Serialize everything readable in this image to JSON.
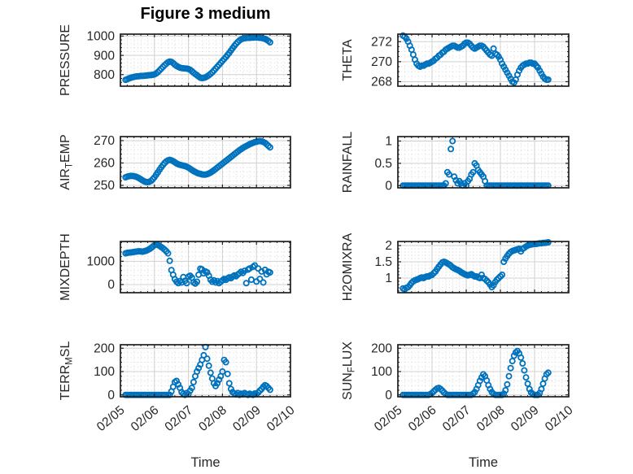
{
  "figure": {
    "title": "Figure 3 medium",
    "xlabel": "Time",
    "x_tick_labels": [
      "02/05",
      "02/06",
      "02/07",
      "02/08",
      "02/09",
      "02/10"
    ],
    "marker_color": "#0072BD",
    "axis_color": "#1f1f1f",
    "grid_color": "#d0d0d0",
    "minor_grid_color": "#d9d9d9",
    "text_color": "#262626"
  },
  "chart_data": [
    {
      "type": "scatter",
      "name": "pressure",
      "ylabel": "PRESSURE",
      "ylabel_parts": {
        "pre": "PRESSURE",
        "sub": "",
        "post": ""
      },
      "row": 0,
      "col": 0,
      "xlim": [
        0,
        5
      ],
      "ylim": [
        740,
        1010
      ],
      "yticks": [
        800,
        900,
        1000
      ],
      "ytick_labels": [
        "800",
        "900",
        "1000"
      ],
      "yminor": 20,
      "x0": 0.15,
      "dx": 0.05,
      "y": [
        773,
        776,
        780,
        783,
        786,
        788,
        790,
        791,
        792,
        793,
        793,
        794,
        795,
        796,
        797,
        798,
        799,
        801,
        806,
        813,
        822,
        831,
        840,
        849,
        857,
        864,
        868,
        866,
        860,
        852,
        845,
        840,
        836,
        834,
        833,
        832,
        831,
        829,
        825,
        818,
        810,
        803,
        797,
        790,
        784,
        782,
        783,
        786,
        791,
        797,
        804,
        812,
        821,
        831,
        841,
        851,
        861,
        871,
        881,
        891,
        902,
        913,
        925,
        937,
        949,
        960,
        969,
        977,
        983,
        987,
        989,
        990,
        991,
        991,
        992,
        992,
        993,
        993,
        992,
        991,
        990,
        988,
        985,
        981,
        975,
        968
      ]
    },
    {
      "type": "scatter",
      "name": "theta",
      "ylabel": "THETA",
      "ylabel_parts": {
        "pre": "THETA",
        "sub": "",
        "post": ""
      },
      "row": 0,
      "col": 1,
      "xlim": [
        0,
        5
      ],
      "ylim": [
        267.55,
        272.75
      ],
      "yticks": [
        268,
        270,
        272
      ],
      "ytick_labels": [
        "268",
        "270",
        "272"
      ],
      "yminor": 0.5,
      "x0": 0.15,
      "dx": 0.05,
      "y": [
        272.6,
        272.5,
        272.3,
        272.0,
        271.6,
        271.2,
        270.7,
        270.2,
        269.8,
        269.6,
        269.5,
        269.6,
        269.6,
        269.7,
        269.8,
        269.8,
        269.9,
        270.0,
        270.1,
        270.3,
        270.4,
        270.6,
        270.7,
        270.9,
        271.0,
        271.2,
        271.3,
        271.4,
        271.5,
        271.6,
        271.6,
        271.5,
        271.4,
        271.4,
        271.5,
        271.6,
        271.8,
        271.9,
        271.9,
        271.8,
        271.6,
        271.4,
        271.3,
        271.4,
        271.5,
        271.6,
        271.6,
        271.5,
        271.3,
        271.1,
        270.9,
        270.7,
        270.6,
        271.3,
        270.8,
        270.7,
        270.5,
        270.2,
        269.8,
        269.5,
        269.2,
        268.9,
        268.6,
        268.3,
        268.0,
        267.9,
        268.2,
        268.7,
        269.1,
        269.4,
        269.6,
        269.7,
        269.8,
        269.8,
        269.9,
        269.9,
        269.8,
        269.8,
        269.6,
        269.4,
        269.1,
        268.8,
        268.5,
        268.3,
        268.2,
        268.2
      ]
    },
    {
      "type": "scatter",
      "name": "airtemp",
      "ylabel": "AIR_TEMP",
      "ylabel_parts": {
        "pre": "AIR",
        "sub": "T",
        "post": "EMP"
      },
      "row": 1,
      "col": 0,
      "xlim": [
        0,
        5
      ],
      "ylim": [
        248.9,
        271.8
      ],
      "yticks": [
        250,
        260,
        270
      ],
      "ytick_labels": [
        "250",
        "260",
        "270"
      ],
      "yminor": 2,
      "x0": 0.15,
      "dx": 0.05,
      "y": [
        253.6,
        253.9,
        254.1,
        254.2,
        254.2,
        254.1,
        253.9,
        253.6,
        253.2,
        252.7,
        252.2,
        251.8,
        251.5,
        251.4,
        251.6,
        252.0,
        252.7,
        253.6,
        254.7,
        255.8,
        257.0,
        258.1,
        259.1,
        260.0,
        260.7,
        261.2,
        261.4,
        261.2,
        260.8,
        260.3,
        259.8,
        259.4,
        259.2,
        259.0,
        258.8,
        258.6,
        258.3,
        257.9,
        257.4,
        256.9,
        256.4,
        256.0,
        255.6,
        255.3,
        255.1,
        254.9,
        254.8,
        254.8,
        255.0,
        255.3,
        255.7,
        256.2,
        256.7,
        257.3,
        257.9,
        258.5,
        259.1,
        259.7,
        260.3,
        260.9,
        261.5,
        262.1,
        262.7,
        263.3,
        263.9,
        264.5,
        265.1,
        265.7,
        266.2,
        266.7,
        267.2,
        267.6,
        268.0,
        268.4,
        268.7,
        269.0,
        269.3,
        269.5,
        269.7,
        269.8,
        269.7,
        269.4,
        269.0,
        268.4,
        267.7,
        267.0
      ]
    },
    {
      "type": "scatter",
      "name": "rainfall",
      "ylabel": "RAINFALL",
      "ylabel_parts": {
        "pre": "RAINFALL",
        "sub": "",
        "post": ""
      },
      "row": 1,
      "col": 1,
      "xlim": [
        0,
        5
      ],
      "ylim": [
        -0.05,
        1.1
      ],
      "yticks": [
        0,
        0.5,
        1
      ],
      "ytick_labels": [
        "0",
        "0.5",
        "1"
      ],
      "yminor": 0.1,
      "x0": 0.15,
      "dx": 0.05,
      "y": [
        0,
        0,
        0,
        0,
        0,
        0,
        0,
        0,
        0,
        0,
        0,
        0,
        0,
        0,
        0,
        0,
        0,
        0,
        0,
        0,
        0,
        0,
        0,
        0,
        0,
        0.05,
        0.3,
        0.25,
        0.82,
        1,
        0.2,
        0.12,
        0.05,
        0.1,
        0.05,
        0,
        0.05,
        0,
        0.1,
        0.15,
        0.25,
        0.3,
        0.5,
        0.45,
        0.35,
        0.3,
        0.25,
        0.2,
        0.1,
        0,
        0,
        0,
        0,
        0,
        0,
        0,
        0,
        0,
        0,
        0,
        0,
        0,
        0,
        0,
        0,
        0,
        0,
        0,
        0,
        0,
        0,
        0,
        0,
        0,
        0,
        0,
        0,
        0,
        0,
        0,
        0,
        0,
        0,
        0,
        0,
        0
      ]
    },
    {
      "type": "scatter",
      "name": "mixdepth",
      "ylabel": "MIXDEPTH",
      "ylabel_parts": {
        "pre": "MIXDEPTH",
        "sub": "",
        "post": ""
      },
      "row": 2,
      "col": 0,
      "xlim": [
        0,
        5
      ],
      "ylim": [
        -350,
        1850
      ],
      "yticks": [
        0,
        1000
      ],
      "ytick_labels": [
        "0",
        "1000"
      ],
      "yminor": 200,
      "x0": 0.15,
      "dx": 0.05,
      "y": [
        1340,
        1360,
        1370,
        1380,
        1390,
        1400,
        1410,
        1420,
        1430,
        1420,
        1410,
        1430,
        1450,
        1480,
        1520,
        1570,
        1630,
        1690,
        1720,
        1700,
        1660,
        1610,
        1560,
        1500,
        1430,
        1340,
        1020,
        620,
        420,
        230,
        120,
        60,
        150,
        90,
        320,
        160,
        60,
        340,
        380,
        300,
        90,
        40,
        120,
        420,
        680,
        650,
        480,
        560,
        520,
        380,
        210,
        120,
        180,
        90,
        150,
        60,
        120,
        180,
        240,
        200,
        260,
        310,
        270,
        340,
        390,
        360,
        430,
        480,
        550,
        500,
        590,
        60,
        640,
        690,
        210,
        760,
        820,
        130,
        690,
        240,
        560,
        90,
        630,
        440,
        550,
        520
      ]
    },
    {
      "type": "scatter",
      "name": "h2omixra",
      "ylabel": "H2OMIXRA",
      "ylabel_parts": {
        "pre": "H2OMIXRA",
        "sub": "",
        "post": ""
      },
      "row": 2,
      "col": 1,
      "xlim": [
        0,
        5
      ],
      "ylim": [
        0.55,
        2.125
      ],
      "yticks": [
        1,
        1.5,
        2
      ],
      "ytick_labels": [
        "1",
        "1.5",
        "2"
      ],
      "yminor": 0.1,
      "x0": 0.15,
      "dx": 0.05,
      "y": [
        0.68,
        0.65,
        0.7,
        0.72,
        0.78,
        0.85,
        0.9,
        0.93,
        0.95,
        0.97,
        1,
        1.02,
        1,
        1.03,
        1.05,
        1.05,
        1.08,
        1.1,
        1.15,
        1.2,
        1.28,
        1.35,
        1.42,
        1.48,
        1.5,
        1.48,
        1.45,
        1.42,
        1.38,
        1.33,
        1.3,
        1.27,
        1.25,
        1.22,
        1.18,
        1.15,
        1.12,
        1.1,
        1.08,
        1.1,
        1.12,
        1.08,
        1.05,
        1.05,
        1.02,
        1,
        1.1,
        1,
        0.97,
        0.92,
        0.87,
        0.8,
        0.72,
        0.78,
        0.88,
        0.95,
        1,
        1.05,
        1.1,
        1.5,
        1.6,
        1.68,
        1.75,
        1.8,
        1.83,
        1.85,
        1.87,
        1.88,
        1.9,
        1.82,
        1.9,
        1.93,
        1.97,
        2,
        2.02,
        2.03,
        2.04,
        2.05,
        2.05,
        2.06,
        2.07,
        2.07,
        2.08,
        2.08,
        2.09,
        2.1
      ]
    },
    {
      "type": "scatter",
      "name": "terr-msl",
      "ylabel": "TERR_MSL",
      "ylabel_parts": {
        "pre": "TERR",
        "sub": "M",
        "post": "SL"
      },
      "row": 3,
      "col": 0,
      "xlim": [
        0,
        5
      ],
      "ylim": [
        -8,
        215
      ],
      "yticks": [
        0,
        100,
        200
      ],
      "ytick_labels": [
        "0",
        "100",
        "200"
      ],
      "yminor": 20,
      "x0": 0.15,
      "dx": 0.05,
      "y": [
        0,
        0,
        0,
        0,
        0,
        0,
        0,
        0,
        0,
        0,
        0,
        0,
        0,
        0,
        0,
        0,
        0,
        0,
        0,
        0,
        0,
        0,
        0,
        0,
        0,
        0,
        0,
        15,
        35,
        55,
        60,
        45,
        30,
        12,
        5,
        0,
        8,
        3,
        18,
        30,
        55,
        80,
        100,
        115,
        130,
        150,
        170,
        205,
        155,
        125,
        95,
        70,
        50,
        38,
        50,
        65,
        80,
        100,
        150,
        140,
        90,
        50,
        25,
        12,
        6,
        2,
        8,
        0,
        5,
        2,
        8,
        3,
        0,
        5,
        2,
        0,
        6,
        3,
        10,
        18,
        25,
        35,
        42,
        38,
        30,
        22
      ]
    },
    {
      "type": "scatter",
      "name": "sun-flux",
      "ylabel": "SUN_FLUX",
      "ylabel_parts": {
        "pre": "SUN",
        "sub": "F",
        "post": "LUX"
      },
      "row": 3,
      "col": 1,
      "xlim": [
        0,
        5
      ],
      "ylim": [
        -8,
        215
      ],
      "yticks": [
        0,
        100,
        200
      ],
      "ytick_labels": [
        "0",
        "100",
        "200"
      ],
      "yminor": 20,
      "x0": 0.15,
      "dx": 0.05,
      "y": [
        0,
        0,
        0,
        0,
        0,
        0,
        0,
        0,
        0,
        0,
        0,
        0,
        0,
        0,
        0,
        0,
        3,
        8,
        15,
        22,
        28,
        30,
        25,
        18,
        10,
        4,
        0,
        0,
        0,
        0,
        0,
        0,
        0,
        0,
        0,
        0,
        0,
        0,
        0,
        0,
        0,
        5,
        12,
        25,
        42,
        60,
        75,
        88,
        80,
        62,
        42,
        25,
        12,
        4,
        0,
        0,
        0,
        0,
        0,
        5,
        20,
        45,
        80,
        115,
        145,
        168,
        182,
        188,
        178,
        160,
        135,
        105,
        75,
        48,
        25,
        10,
        3,
        0,
        0,
        0,
        8,
        25,
        48,
        70,
        88,
        95
      ]
    }
  ]
}
